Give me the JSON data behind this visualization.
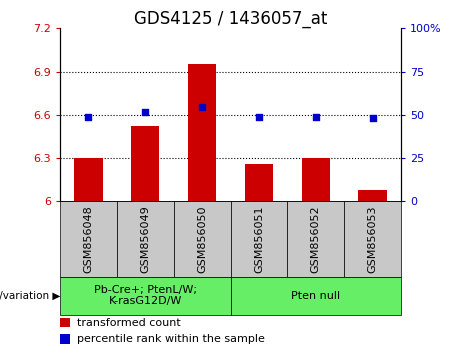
{
  "title": "GDS4125 / 1436057_at",
  "categories": [
    "GSM856048",
    "GSM856049",
    "GSM856050",
    "GSM856051",
    "GSM856052",
    "GSM856053"
  ],
  "bar_values": [
    6.3,
    6.52,
    6.95,
    6.26,
    6.3,
    6.08
  ],
  "bar_base": 6.0,
  "blue_dot_values": [
    6.585,
    6.62,
    6.655,
    6.585,
    6.585,
    6.575
  ],
  "ylim_left": [
    6.0,
    7.2
  ],
  "ylim_right": [
    0,
    100
  ],
  "yticks_left": [
    6.0,
    6.3,
    6.6,
    6.9,
    7.2
  ],
  "yticks_right": [
    0,
    25,
    50,
    75,
    100
  ],
  "ytick_labels_left": [
    "6",
    "6.3",
    "6.6",
    "6.9",
    "7.2"
  ],
  "ytick_labels_right": [
    "0",
    "25",
    "50",
    "75",
    "100%"
  ],
  "hlines": [
    6.3,
    6.6,
    6.9
  ],
  "bar_color": "#cc0000",
  "dot_color": "#0000cc",
  "bar_width": 0.5,
  "group1_label": "Pb-Cre+; PtenL/W;\nK-rasG12D/W",
  "group2_label": "Pten null",
  "group1_indices": [
    0,
    1,
    2
  ],
  "group2_indices": [
    3,
    4,
    5
  ],
  "group_label_prefix": "genotype/variation",
  "legend_bar_label": "transformed count",
  "legend_dot_label": "percentile rank within the sample",
  "left_tick_color": "#cc0000",
  "right_tick_color": "#0000cc",
  "bg_xlabel": "#c8c8c8",
  "bg_group": "#66ee66",
  "title_fontsize": 12,
  "tick_fontsize": 8,
  "label_fontsize": 8,
  "legend_fontsize": 8
}
